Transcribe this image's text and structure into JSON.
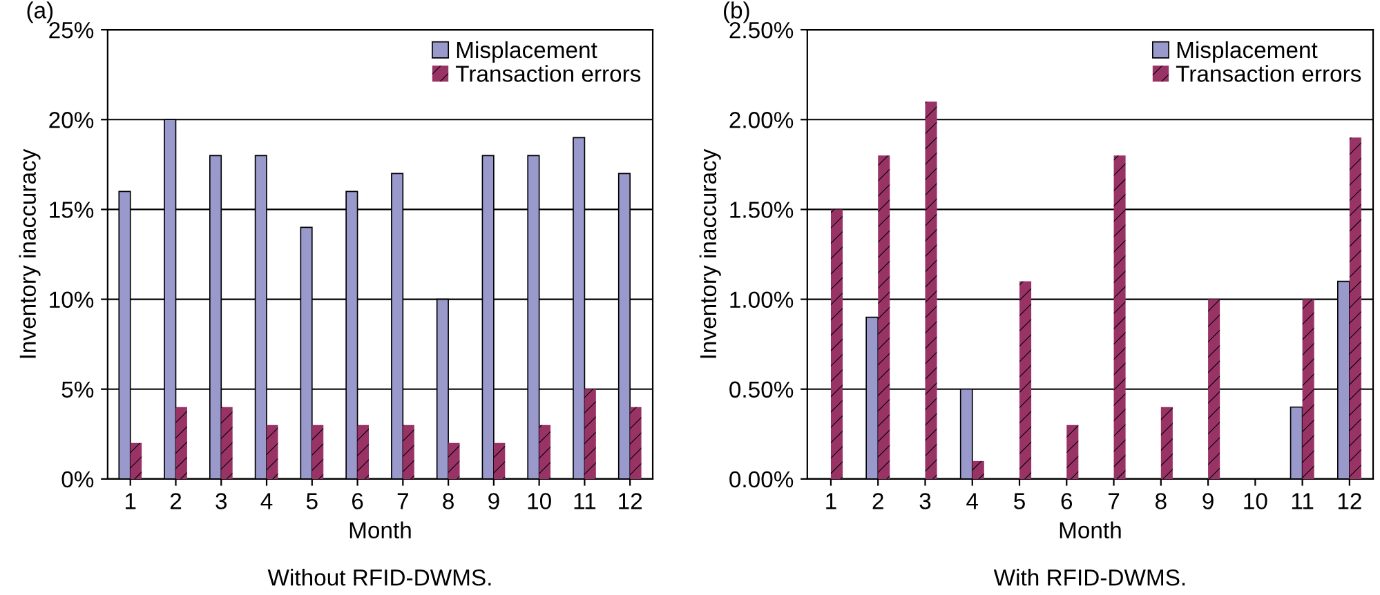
{
  "chart_data": [
    {
      "type": "bar",
      "title": "(a)",
      "xlabel": "Month",
      "ylabel": "Inventory inaccuracy",
      "annotations": [
        "Without RFID-DWMS."
      ],
      "categories": [
        "1",
        "2",
        "3",
        "4",
        "5",
        "6",
        "7",
        "8",
        "9",
        "10",
        "11",
        "12"
      ],
      "series": [
        {
          "name": "Misplacement",
          "color": "#9999cc",
          "values": [
            16,
            20,
            18,
            18,
            14,
            16,
            17,
            10,
            18,
            18,
            19,
            17
          ]
        },
        {
          "name": "Transaction errors",
          "color": "#993366",
          "values": [
            2,
            4,
            4,
            3,
            3,
            3,
            3,
            2,
            2,
            3,
            5,
            4
          ]
        }
      ],
      "ylim": [
        0,
        25
      ],
      "yticks": [
        {
          "value": 0,
          "label": "0%"
        },
        {
          "value": 5,
          "label": "5%"
        },
        {
          "value": 10,
          "label": "10%"
        },
        {
          "value": 15,
          "label": "15%"
        },
        {
          "value": 20,
          "label": "20%"
        },
        {
          "value": 25,
          "label": "25%"
        }
      ],
      "grid": "y",
      "legend": "top right"
    },
    {
      "type": "bar",
      "title": "(b)",
      "xlabel": "Month",
      "ylabel": "Inventory inaccuracy",
      "annotations": [
        "With RFID-DWMS."
      ],
      "categories": [
        "1",
        "2",
        "3",
        "4",
        "5",
        "6",
        "7",
        "8",
        "9",
        "10",
        "11",
        "12"
      ],
      "series": [
        {
          "name": "Misplacement",
          "color": "#9999cc",
          "values": [
            0,
            0.9,
            0,
            0.5,
            0,
            0,
            0,
            0,
            0,
            0,
            0.4,
            1.1
          ]
        },
        {
          "name": "Transaction errors",
          "color": "#993366",
          "values": [
            1.5,
            1.8,
            2.1,
            0.1,
            1.1,
            0.3,
            1.8,
            0.4,
            1.0,
            0,
            1.0,
            1.9
          ]
        }
      ],
      "ylim": [
        0,
        2.5
      ],
      "yticks": [
        {
          "value": 0,
          "label": "0.00%"
        },
        {
          "value": 0.5,
          "label": "0.50%"
        },
        {
          "value": 1.0,
          "label": "1.00%"
        },
        {
          "value": 1.5,
          "label": "1.50%"
        },
        {
          "value": 2.0,
          "label": "2.00%"
        },
        {
          "value": 2.5,
          "label": "2.50%"
        }
      ],
      "grid": "y",
      "legend": "top right"
    }
  ]
}
